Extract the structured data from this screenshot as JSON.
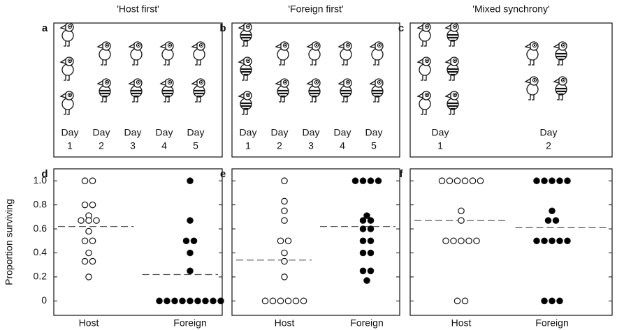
{
  "diagrams": [
    {
      "letter": "a",
      "title": "'Host first'",
      "day_label": "Day",
      "days": [
        "1",
        "2",
        "3",
        "4",
        "5"
      ]
    },
    {
      "letter": "b",
      "title": "'Foreign first'",
      "day_label": "Day",
      "days": [
        "1",
        "2",
        "3",
        "4",
        "5"
      ]
    },
    {
      "letter": "c",
      "title": "'Mixed synchrony'",
      "day_label": "Day",
      "days": [
        "1",
        "2"
      ]
    }
  ],
  "chart_data": [
    {
      "type": "strip",
      "letter": "d",
      "ylabel": "Proportion surviving",
      "ylim": [
        -0.12,
        1.1
      ],
      "yticks": [
        {
          "value": 1,
          "label": "1.0"
        },
        0.8,
        0.6,
        0.4,
        0.2,
        0
      ],
      "series": [
        {
          "name": "Host",
          "color": "#ffffff",
          "values": [
            1,
            1,
            0.8,
            0.8,
            0.71,
            0.67,
            0.67,
            0.67,
            0.58,
            0.5,
            0.5,
            0.4,
            0.33,
            0.33,
            0.2
          ],
          "median": 0.62
        },
        {
          "name": "Foreign",
          "color": "#000000",
          "values": [
            1,
            0.67,
            0.5,
            0.5,
            0.4,
            0.25,
            0,
            0,
            0,
            0,
            0,
            0,
            0,
            0,
            0
          ],
          "median": 0.22
        }
      ]
    },
    {
      "type": "strip",
      "letter": "e",
      "ylim": [
        -0.12,
        1.1
      ],
      "yticks": [
        {
          "value": 1,
          "label": "1.0"
        },
        0.8,
        0.6,
        0.4,
        0.2,
        0
      ],
      "series": [
        {
          "name": "Host",
          "color": "#ffffff",
          "values": [
            1,
            0.83,
            0.75,
            0.67,
            0.5,
            0.5,
            0.4,
            0.33,
            0.2,
            0,
            0,
            0,
            0,
            0,
            0
          ],
          "median": 0.34
        },
        {
          "name": "Foreign",
          "color": "#000000",
          "values": [
            1,
            1,
            1,
            1,
            0.71,
            0.67,
            0.67,
            0.6,
            0.6,
            0.5,
            0.5,
            0.4,
            0.4,
            0.25,
            0.25,
            0.17
          ],
          "median": 0.62
        }
      ]
    },
    {
      "type": "strip",
      "letter": "f",
      "ylim": [
        -0.12,
        1.1
      ],
      "yticks": [
        {
          "value": 1,
          "label": "1.0"
        },
        0.8,
        0.6,
        0.4,
        0.2,
        0
      ],
      "series": [
        {
          "name": "Host",
          "color": "#ffffff",
          "values": [
            1,
            1,
            1,
            1,
            1,
            1,
            0.75,
            0.67,
            0.5,
            0.5,
            0.5,
            0.5,
            0.5,
            0,
            0
          ],
          "median": 0.67
        },
        {
          "name": "Foreign",
          "color": "#000000",
          "values": [
            1,
            1,
            1,
            1,
            1,
            0.75,
            0.67,
            0.67,
            0.5,
            0.5,
            0.5,
            0.5,
            0.5,
            0,
            0,
            0
          ],
          "median": 0.61
        }
      ]
    }
  ]
}
